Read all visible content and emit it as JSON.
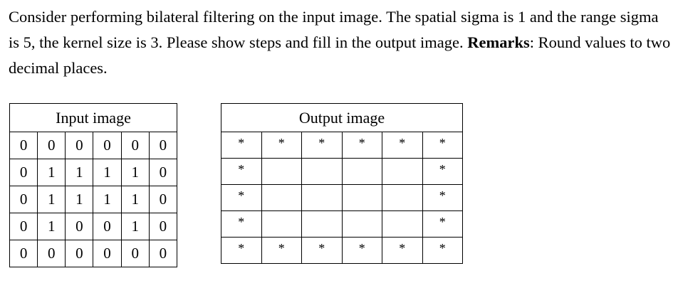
{
  "question": {
    "part1": "Consider performing bilateral filtering on the input image. The spatial sigma is 1 and the range sigma is 5, the kernel size is 3. Please show steps and fill in the output image. ",
    "remarks_label": "Remarks",
    "part2": ": Round values to two decimal places."
  },
  "input_table": {
    "title": "Input image",
    "rows": [
      [
        "0",
        "0",
        "0",
        "0",
        "0",
        "0"
      ],
      [
        "0",
        "1",
        "1",
        "1",
        "1",
        "0"
      ],
      [
        "0",
        "1",
        "1",
        "1",
        "1",
        "0"
      ],
      [
        "0",
        "1",
        "0",
        "0",
        "1",
        "0"
      ],
      [
        "0",
        "0",
        "0",
        "0",
        "0",
        "0"
      ]
    ]
  },
  "output_table": {
    "title": "Output image",
    "rows": [
      [
        "*",
        "*",
        "*",
        "*",
        "*",
        "*"
      ],
      [
        "*",
        "",
        "",
        "",
        "",
        "*"
      ],
      [
        "*",
        "",
        "",
        "",
        "",
        "*"
      ],
      [
        "*",
        "",
        "",
        "",
        "",
        "*"
      ],
      [
        "*",
        "*",
        "*",
        "*",
        "*",
        "*"
      ]
    ]
  }
}
